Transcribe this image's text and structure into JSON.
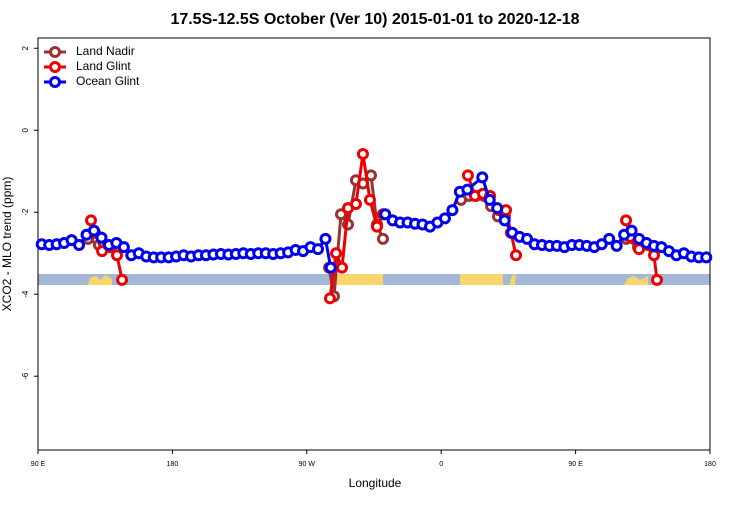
{
  "chart_data": {
    "type": "line",
    "title": "17.5S-12.5S October (Ver 10)   2015-01-01 to 2020-12-18",
    "x_label": "Longitude",
    "y_label": "XCO2 - MLO trend (ppm)",
    "xlim": [
      90,
      540
    ],
    "ylim": [
      -7.8,
      2.25
    ],
    "xticks": [
      {
        "value": 90,
        "label": "90 E"
      },
      {
        "value": 180,
        "label": "180"
      },
      {
        "value": 270,
        "label": "90 W"
      },
      {
        "value": 360,
        "label": "0"
      },
      {
        "value": 450,
        "label": "90 E"
      },
      {
        "value": 540,
        "label": "180"
      }
    ],
    "yticks": [
      -6,
      -4,
      -2,
      0,
      2
    ],
    "legend": "top-left",
    "series": [
      {
        "name": "Land Nadir",
        "color": "#993333",
        "x": [
          123.5,
          130.8,
          143.6,
          214,
          284.9,
          288.2,
          292.9,
          297.6,
          302.9,
          307.6,
          313,
          317,
          321,
          350,
          373.3,
          378.7,
          383.3,
          388.7,
          393.4,
          398,
          402.7,
          450,
          483.8,
          491.8,
          502.5
        ],
        "values": [
          -2.65,
          -2.8,
          -2.9,
          null,
          -3.35,
          -4.05,
          -2.05,
          -2.3,
          -1.22,
          -1.3,
          -1.1,
          -2.3,
          -2.65,
          null,
          -1.7,
          -1.6,
          -1.6,
          -1.6,
          -1.85,
          -2.1,
          -2.1,
          null,
          -2.65,
          -2.85,
          -2.9
        ]
      },
      {
        "name": "Land Glint",
        "color": "#ee0000",
        "x": [
          125.5,
          128.2,
          132.9,
          138.2,
          142.9,
          146.3,
          214,
          285.5,
          289.6,
          293.6,
          297.6,
          302.9,
          307.6,
          312.3,
          317,
          321,
          350,
          377.9,
          382.6,
          388,
          392.7,
          398.7,
          403.4,
          406.7,
          410.1,
          450,
          483.8,
          486.5,
          492.5,
          498.6,
          502.5,
          504.5
        ],
        "values": [
          -2.2,
          -2.5,
          -2.95,
          -2.85,
          -3.05,
          -3.65,
          null,
          -4.1,
          -3.0,
          -3.35,
          -1.9,
          -1.8,
          -0.58,
          -1.7,
          -2.35,
          -2.05,
          null,
          -1.1,
          -1.6,
          -1.55,
          -1.6,
          -1.95,
          -1.95,
          -2.5,
          -3.05,
          null,
          -2.2,
          -2.6,
          -2.9,
          -2.8,
          -3.05,
          -3.65
        ]
      },
      {
        "name": "Ocean Glint",
        "color": "#0000ee",
        "x": [
          92.5,
          97.5,
          102.5,
          107.5,
          112.5,
          117.5,
          122.5,
          127.5,
          132.5,
          137.5,
          142.5,
          147.5,
          152.5,
          157.5,
          162.5,
          167.5,
          172.5,
          177.5,
          182.5,
          187.5,
          192.5,
          197.5,
          202.5,
          207.5,
          212.5,
          217.5,
          222.5,
          227.5,
          232.5,
          237.5,
          242.5,
          247.5,
          252.5,
          257.5,
          262.5,
          267.5,
          272.5,
          277.5,
          282.5,
          286,
          304,
          322.5,
          327.5,
          332.5,
          337.5,
          342.5,
          347.5,
          352.5,
          357.5,
          362.5,
          367.5,
          372.5,
          377.5,
          387.5,
          392.5,
          397.5,
          402.5,
          407.5,
          412.5,
          417.5,
          422.5,
          427.5,
          432.5,
          437.5,
          442.5,
          447.5,
          452.5,
          457.5,
          462.5,
          467.5,
          472.5,
          477.5,
          482.5,
          487.5,
          492.5,
          497.5,
          502.5,
          507.5,
          512.5,
          517.5,
          522.5,
          527.5,
          532.5,
          537.5
        ],
        "values": [
          -2.78,
          -2.8,
          -2.78,
          -2.75,
          -2.68,
          -2.8,
          -2.55,
          -2.45,
          -2.62,
          -2.8,
          -2.75,
          -2.85,
          -3.05,
          -3.0,
          -3.08,
          -3.1,
          -3.1,
          -3.1,
          -3.08,
          -3.05,
          -3.08,
          -3.05,
          -3.05,
          -3.03,
          -3.02,
          -3.03,
          -3.02,
          -3.0,
          -3.02,
          -3.0,
          -3.0,
          -3.02,
          -3.0,
          -2.98,
          -2.92,
          -2.95,
          -2.85,
          -2.9,
          -2.65,
          -3.35,
          null,
          -2.05,
          -2.2,
          -2.25,
          -2.25,
          -2.28,
          -2.3,
          -2.35,
          -2.25,
          -2.15,
          -1.95,
          -1.5,
          -1.45,
          -1.15,
          -1.7,
          -1.9,
          -2.2,
          -2.5,
          -2.6,
          -2.65,
          -2.78,
          -2.8,
          -2.82,
          -2.82,
          -2.85,
          -2.8,
          -2.8,
          -2.82,
          -2.85,
          -2.78,
          -2.65,
          -2.82,
          -2.55,
          -2.45,
          -2.65,
          -2.75,
          -2.82,
          -2.85,
          -2.95,
          -3.05,
          -3.0,
          -3.08,
          -3.1,
          -3.1
        ]
      }
    ]
  }
}
